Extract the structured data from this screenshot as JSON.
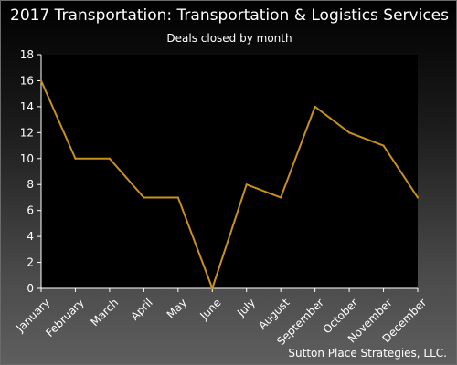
{
  "chart_data": {
    "type": "line",
    "title": "2017 Transportation: Transportation & Logistics Services",
    "subtitle": "Deals closed by month",
    "credit": "Sutton Place Strategies, LLC.",
    "categories": [
      "January",
      "February",
      "March",
      "April",
      "May",
      "June",
      "July",
      "August",
      "September",
      "October",
      "November",
      "December"
    ],
    "values": [
      16,
      10,
      10,
      7,
      7,
      0,
      8,
      7,
      14,
      12,
      11,
      7
    ],
    "ylim": [
      0,
      18
    ],
    "yticks": [
      0,
      2,
      4,
      6,
      8,
      10,
      12,
      14,
      16,
      18
    ],
    "xlabel": "",
    "ylabel": "",
    "grid": false,
    "legend": "none",
    "line_color": "#c8901e",
    "plot_background": "#000000",
    "axis_color": "#ffffff"
  }
}
